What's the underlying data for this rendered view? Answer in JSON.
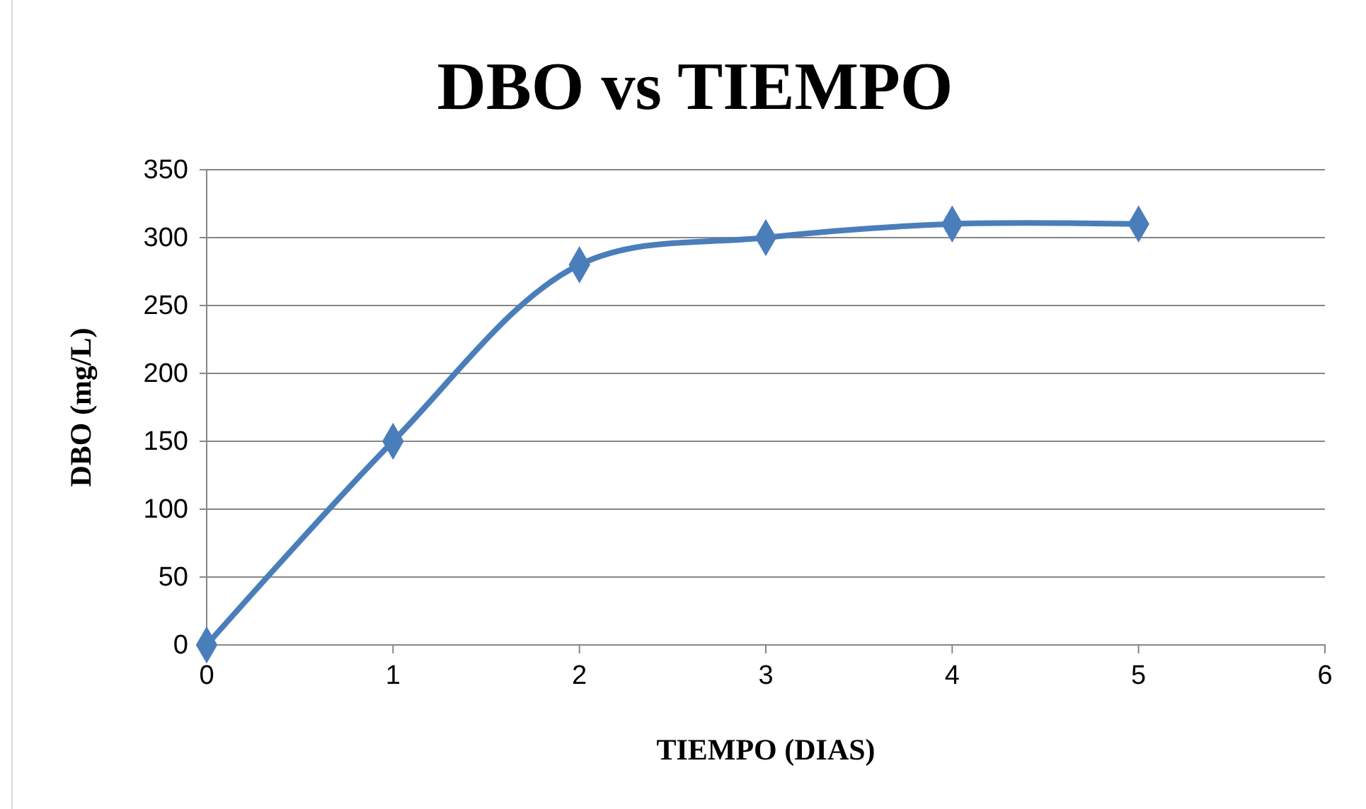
{
  "chart_data": {
    "type": "line",
    "title": "DBO vs TIEMPO",
    "xlabel": "TIEMPO (DIAS)",
    "ylabel": "DBO (mg/L)",
    "x": [
      0,
      1,
      2,
      3,
      4,
      5
    ],
    "series": [
      {
        "color": "#4a7ebb",
        "values": [
          0,
          150,
          280,
          300,
          310,
          310
        ]
      }
    ],
    "xlim": [
      0,
      6
    ],
    "xticks": [
      0,
      1,
      2,
      3,
      4,
      5,
      6
    ],
    "ylim": [
      0,
      350
    ],
    "yticks": [
      0,
      50,
      100,
      150,
      200,
      250,
      300,
      350
    ],
    "grid": "y",
    "marker": "diamond",
    "line_style": "solid"
  }
}
